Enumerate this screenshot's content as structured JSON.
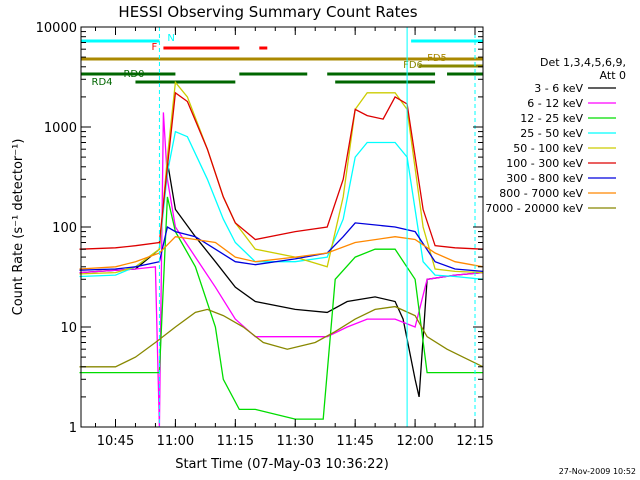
{
  "chart_data": {
    "type": "line",
    "title": "HESSI Observing Summary Count Rates",
    "xlabel": "Start Time (07-May-03 10:36:22)",
    "ylabel": "Count Rate (s⁻¹ detector⁻¹)",
    "footer": "27-Nov-2009 10:52",
    "x_unit": "minutes after 10:36:22",
    "xlim_labels": [
      "10:36",
      "12:17"
    ],
    "xticks": [
      "10:45",
      "11:00",
      "11:15",
      "11:30",
      "11:45",
      "12:00",
      "12:15"
    ],
    "yticks": [
      "1",
      "10",
      "100",
      "1000",
      "10000"
    ],
    "ylim": [
      1,
      10000
    ],
    "y_scale": "log",
    "legend": {
      "header_lines": [
        "Det 1,3,4,5,6,9,",
        "Att 0"
      ],
      "position": "right"
    },
    "series": [
      {
        "name": "3 - 6 keV",
        "color": "#000000",
        "x": [
          "10:36",
          "10:50",
          "10:56",
          "10:58",
          "11:00",
          "11:05",
          "11:10",
          "11:15",
          "11:20",
          "11:30",
          "11:38",
          "11:43",
          "11:50",
          "11:55",
          "11:57",
          "12:00",
          "12:01",
          "12:03",
          "12:10",
          "12:17"
        ],
        "y": [
          35,
          38,
          60,
          450,
          150,
          80,
          45,
          25,
          18,
          15,
          14,
          18,
          20,
          18,
          12,
          3,
          2,
          30,
          33,
          35
        ]
      },
      {
        "name": "6 - 12 keV",
        "color": "#ff00ff",
        "x": [
          "10:36",
          "10:50",
          "10:55",
          "10:56",
          "10:57",
          "10:58",
          "11:00",
          "11:05",
          "11:10",
          "11:15",
          "11:20",
          "11:30",
          "11:38",
          "11:43",
          "11:48",
          "11:55",
          "12:00",
          "12:03",
          "12:10",
          "12:17"
        ],
        "y": [
          35,
          38,
          40,
          1,
          1400,
          300,
          100,
          50,
          25,
          12,
          8,
          8,
          8,
          10,
          12,
          12,
          10,
          30,
          33,
          35
        ]
      },
      {
        "name": "12 - 25 keV",
        "color": "#00dd00",
        "x": [
          "10:36",
          "10:50",
          "10:56",
          "10:58",
          "11:00",
          "11:05",
          "11:10",
          "11:12",
          "11:16",
          "11:20",
          "11:30",
          "11:37",
          "11:40",
          "11:45",
          "11:50",
          "11:55",
          "12:00",
          "12:03",
          "12:10",
          "12:17"
        ],
        "y": [
          3.5,
          3.5,
          3.5,
          200,
          90,
          40,
          10,
          3,
          1.5,
          1.5,
          1.2,
          1.2,
          30,
          50,
          60,
          60,
          30,
          3.5,
          3.5,
          3.5
        ]
      },
      {
        "name": "25 - 50 keV",
        "color": "#00ffff",
        "x": [
          "10:36",
          "10:45",
          "10:50",
          "10:56",
          "10:58",
          "11:00",
          "11:03",
          "11:08",
          "11:12",
          "11:15",
          "11:20",
          "11:30",
          "11:38",
          "11:42",
          "11:45",
          "11:48",
          "11:55",
          "11:58",
          "12:02",
          "12:05",
          "12:10",
          "12:17"
        ],
        "y": [
          32,
          33,
          40,
          60,
          350,
          900,
          800,
          300,
          120,
          70,
          45,
          45,
          50,
          120,
          500,
          700,
          700,
          500,
          45,
          33,
          32,
          30
        ]
      },
      {
        "name": "50 - 100 keV",
        "color": "#cccc00",
        "x": [
          "10:36",
          "10:45",
          "10:50",
          "10:56",
          "10:58",
          "11:00",
          "11:03",
          "11:08",
          "11:12",
          "11:15",
          "11:20",
          "11:30",
          "11:38",
          "11:42",
          "11:45",
          "11:48",
          "11:55",
          "11:58",
          "12:02",
          "12:05",
          "12:10",
          "12:17"
        ],
        "y": [
          34,
          35,
          40,
          60,
          500,
          2800,
          2000,
          600,
          200,
          110,
          60,
          50,
          40,
          200,
          1500,
          2200,
          2200,
          1500,
          100,
          38,
          36,
          35
        ]
      },
      {
        "name": "100 - 300 keV",
        "color": "#dd0000",
        "x": [
          "10:36",
          "10:45",
          "10:50",
          "10:56",
          "10:58",
          "11:00",
          "11:03",
          "11:08",
          "11:12",
          "11:15",
          "11:20",
          "11:30",
          "11:38",
          "11:42",
          "11:45",
          "11:48",
          "11:52",
          "11:55",
          "11:58",
          "12:02",
          "12:05",
          "12:10",
          "12:17"
        ],
        "y": [
          60,
          62,
          65,
          70,
          400,
          2200,
          1800,
          600,
          200,
          110,
          75,
          90,
          100,
          300,
          1500,
          1300,
          1200,
          2000,
          1700,
          150,
          65,
          62,
          60
        ]
      },
      {
        "name": "300 - 800 keV",
        "color": "#0000dd",
        "x": [
          "10:36",
          "10:45",
          "10:50",
          "10:56",
          "10:58",
          "11:00",
          "11:05",
          "11:10",
          "11:15",
          "11:20",
          "11:30",
          "11:38",
          "11:42",
          "11:45",
          "11:55",
          "12:00",
          "12:05",
          "12:10",
          "12:17"
        ],
        "y": [
          37,
          38,
          40,
          45,
          100,
          90,
          80,
          60,
          45,
          42,
          48,
          55,
          80,
          110,
          100,
          90,
          45,
          38,
          36
        ]
      },
      {
        "name": "800 - 7000 keV",
        "color": "#ff8800",
        "x": [
          "10:36",
          "10:45",
          "10:50",
          "10:56",
          "11:00",
          "11:05",
          "11:10",
          "11:15",
          "11:20",
          "11:30",
          "11:38",
          "11:45",
          "11:55",
          "12:00",
          "12:05",
          "12:10",
          "12:17"
        ],
        "y": [
          38,
          40,
          45,
          55,
          80,
          75,
          70,
          50,
          45,
          50,
          55,
          70,
          80,
          75,
          55,
          45,
          40
        ]
      },
      {
        "name": "7000 - 20000 keV",
        "color": "#888800",
        "x": [
          "10:36",
          "10:45",
          "10:50",
          "10:55",
          "11:00",
          "11:05",
          "11:08",
          "11:12",
          "11:17",
          "11:22",
          "11:28",
          "11:35",
          "11:40",
          "11:45",
          "11:50",
          "11:55",
          "12:00",
          "12:03",
          "12:08",
          "12:12",
          "12:17"
        ],
        "y": [
          4,
          4,
          5,
          7,
          10,
          14,
          15,
          13,
          10,
          7,
          6,
          7,
          9,
          12,
          15,
          16,
          13,
          8,
          6,
          5,
          4
        ]
      }
    ],
    "state_bars": [
      {
        "label": "N",
        "color": "#00ffff",
        "segments": [
          [
            "10:36",
            "10:56"
          ],
          [
            "11:59",
            "12:17"
          ]
        ]
      },
      {
        "label": "F",
        "color": "#ff0000",
        "segments": [
          [
            "10:57",
            "11:16"
          ],
          [
            "11:21",
            "11:23"
          ]
        ]
      },
      {
        "label": "FD5",
        "color": "#aa8800",
        "segments": [
          [
            "10:36",
            "12:17"
          ]
        ]
      },
      {
        "label": "FD6",
        "color": "#888800",
        "segments": [
          [
            "12:01",
            "12:17"
          ]
        ]
      },
      {
        "label": "RD0",
        "color": "#006600",
        "segments": [
          [
            "10:36",
            "11:00"
          ],
          [
            "11:16",
            "11:33"
          ],
          [
            "11:38",
            "12:05"
          ],
          [
            "12:08",
            "12:17"
          ]
        ]
      },
      {
        "label": "RD4",
        "color": "#006600",
        "segments": [
          [
            "10:50",
            "11:15"
          ],
          [
            "11:40",
            "12:05"
          ]
        ]
      }
    ],
    "vertical_markers": [
      {
        "x": "10:56",
        "color": "#00ffff",
        "style": "dashed"
      },
      {
        "x": "11:58",
        "color": "#00ffff",
        "style": "solid"
      },
      {
        "x": "12:15",
        "color": "#00ffff",
        "style": "dashed"
      }
    ]
  }
}
